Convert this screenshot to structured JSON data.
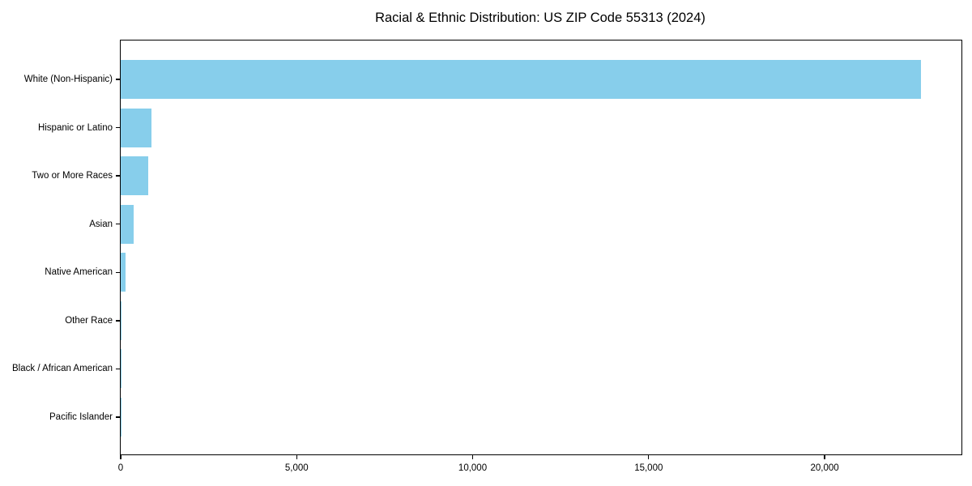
{
  "figure": {
    "title": "Racial & Ethnic Distribution: US ZIP Code 55313 (2024)"
  },
  "chart_data": {
    "type": "bar",
    "orientation": "horizontal",
    "title": "Racial & Ethnic Distribution: US ZIP Code 55313 (2024)",
    "categories": [
      "White (Non-Hispanic)",
      "Hispanic or Latino",
      "Two or More Races",
      "Asian",
      "Native American",
      "Other Race",
      "Black / African American",
      "Pacific Islander"
    ],
    "values": [
      22730,
      880,
      790,
      365,
      130,
      20,
      15,
      5
    ],
    "xlabel": "",
    "ylabel": "",
    "xlim": [
      0,
      23888
    ],
    "xticks": {
      "values": [
        0,
        5000,
        10000,
        15000,
        20000
      ],
      "labels": [
        "0",
        "5,000",
        "10,000",
        "15,000",
        "20,000"
      ]
    },
    "bar_color": "#87CEEB",
    "axis_color": "#000000",
    "background": "#ffffff",
    "grid": false,
    "legend_position": "none"
  }
}
